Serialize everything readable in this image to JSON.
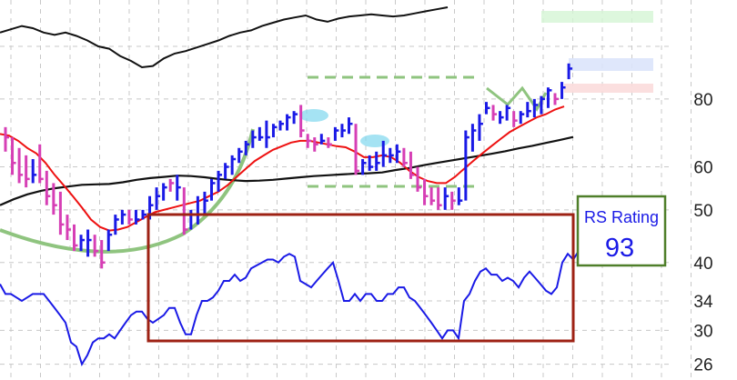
{
  "chart_data": {
    "type": "line",
    "title": "",
    "xlabel": "",
    "ylabel": "",
    "y_scale": "log",
    "ylim": [
      24.5,
      118
    ],
    "y_ticks": [
      80,
      60,
      50,
      40,
      34,
      30,
      26
    ],
    "grid": true,
    "colors": {
      "up_bar": "#1a1ae6",
      "down_bar": "#d63fb5",
      "ma_fast": "#ee1111",
      "ma_slow": "#111111",
      "rs_line_upper": "#111111",
      "rs_line_lower": "#1a1ae6",
      "pattern_marks": "#8fc47f",
      "rs_box": "#9e2214",
      "rating_box": "#4f7f2a",
      "rating_text": "#1a1ae6"
    },
    "series": [
      {
        "kind": "ohlc",
        "values": [
          {
            "h": 71,
            "l": 64,
            "c": 68,
            "up": false
          },
          {
            "h": 68,
            "l": 58,
            "c": 61,
            "up": false
          },
          {
            "h": 65,
            "l": 56,
            "c": 58,
            "up": false
          },
          {
            "h": 63,
            "l": 55,
            "c": 57,
            "up": false
          },
          {
            "h": 62,
            "l": 56,
            "c": 58,
            "up": true
          },
          {
            "h": 66,
            "l": 56,
            "c": 57,
            "up": false
          },
          {
            "h": 59,
            "l": 51,
            "c": 53,
            "up": false
          },
          {
            "h": 56,
            "l": 49,
            "c": 51,
            "up": false
          },
          {
            "h": 54,
            "l": 45,
            "c": 47,
            "up": false
          },
          {
            "h": 49,
            "l": 44,
            "c": 46,
            "up": false
          },
          {
            "h": 47,
            "l": 42,
            "c": 43,
            "up": false
          },
          {
            "h": 45,
            "l": 42,
            "c": 44,
            "up": true
          },
          {
            "h": 46,
            "l": 41,
            "c": 44,
            "up": true
          },
          {
            "h": 45,
            "l": 41,
            "c": 42,
            "up": false
          },
          {
            "h": 44,
            "l": 39,
            "c": 40,
            "up": false
          },
          {
            "h": 46,
            "l": 42,
            "c": 45,
            "up": true
          },
          {
            "h": 49,
            "l": 45,
            "c": 48,
            "up": true
          },
          {
            "h": 50,
            "l": 47,
            "c": 49,
            "up": true
          },
          {
            "h": 50,
            "l": 47,
            "c": 48,
            "up": false
          },
          {
            "h": 50,
            "l": 47,
            "c": 48,
            "up": true
          },
          {
            "h": 50,
            "l": 48,
            "c": 49,
            "up": true
          },
          {
            "h": 53,
            "l": 48,
            "c": 51,
            "up": true
          },
          {
            "h": 55,
            "l": 50,
            "c": 53,
            "up": true
          },
          {
            "h": 56,
            "l": 52,
            "c": 55,
            "up": true
          },
          {
            "h": 57,
            "l": 54,
            "c": 56,
            "up": false
          },
          {
            "h": 58,
            "l": 52,
            "c": 55,
            "up": true
          },
          {
            "h": 55,
            "l": 45,
            "c": 46,
            "up": false
          },
          {
            "h": 50,
            "l": 46,
            "c": 49,
            "up": true
          },
          {
            "h": 53,
            "l": 47,
            "c": 49,
            "up": true
          },
          {
            "h": 54,
            "l": 49,
            "c": 52,
            "up": true
          },
          {
            "h": 57,
            "l": 52,
            "c": 56,
            "up": true
          },
          {
            "h": 59,
            "l": 54,
            "c": 58,
            "up": true
          },
          {
            "h": 61,
            "l": 57,
            "c": 60,
            "up": true
          },
          {
            "h": 63,
            "l": 58,
            "c": 62,
            "up": true
          },
          {
            "h": 65,
            "l": 61,
            "c": 64,
            "up": true
          },
          {
            "h": 67,
            "l": 63,
            "c": 66,
            "up": true
          },
          {
            "h": 70,
            "l": 65,
            "c": 68,
            "up": true
          },
          {
            "h": 71,
            "l": 67,
            "c": 68,
            "up": true
          },
          {
            "h": 73,
            "l": 65,
            "c": 68,
            "up": true
          },
          {
            "h": 72,
            "l": 68,
            "c": 71,
            "up": true
          },
          {
            "h": 73,
            "l": 70,
            "c": 72,
            "up": true
          },
          {
            "h": 75,
            "l": 70,
            "c": 74,
            "up": true
          },
          {
            "h": 76,
            "l": 72,
            "c": 75,
            "up": true
          },
          {
            "h": 78,
            "l": 68,
            "c": 70,
            "up": false
          },
          {
            "h": 69,
            "l": 65,
            "c": 67,
            "up": false
          },
          {
            "h": 68,
            "l": 64,
            "c": 66,
            "up": false
          },
          {
            "h": 69,
            "l": 66,
            "c": 67,
            "up": true
          },
          {
            "h": 68,
            "l": 65,
            "c": 66,
            "up": false
          },
          {
            "h": 71,
            "l": 67,
            "c": 70,
            "up": true
          },
          {
            "h": 72,
            "l": 68,
            "c": 70,
            "up": true
          },
          {
            "h": 74,
            "l": 69,
            "c": 72,
            "up": true
          },
          {
            "h": 72,
            "l": 58,
            "c": 59,
            "up": false
          },
          {
            "h": 62,
            "l": 58,
            "c": 61,
            "up": true
          },
          {
            "h": 63,
            "l": 59,
            "c": 60,
            "up": true
          },
          {
            "h": 64,
            "l": 59,
            "c": 61,
            "up": true
          },
          {
            "h": 67,
            "l": 60,
            "c": 63,
            "up": true
          },
          {
            "h": 65,
            "l": 61,
            "c": 63,
            "up": true
          },
          {
            "h": 66,
            "l": 61,
            "c": 64,
            "up": true
          },
          {
            "h": 65,
            "l": 60,
            "c": 61,
            "up": false
          },
          {
            "h": 64,
            "l": 57,
            "c": 58,
            "up": false
          },
          {
            "h": 60,
            "l": 54,
            "c": 55,
            "up": false
          },
          {
            "h": 57,
            "l": 51,
            "c": 53,
            "up": false
          },
          {
            "h": 55,
            "l": 51,
            "c": 52,
            "up": false
          },
          {
            "h": 55,
            "l": 50,
            "c": 51,
            "up": false
          },
          {
            "h": 55,
            "l": 50,
            "c": 53,
            "up": true
          },
          {
            "h": 54,
            "l": 50,
            "c": 52,
            "up": false
          },
          {
            "h": 55,
            "l": 51,
            "c": 52,
            "up": true
          },
          {
            "h": 70,
            "l": 52,
            "c": 68,
            "up": true
          },
          {
            "h": 72,
            "l": 64,
            "c": 70,
            "up": true
          },
          {
            "h": 75,
            "l": 67,
            "c": 72,
            "up": true
          },
          {
            "h": 79,
            "l": 75,
            "c": 77,
            "up": true
          },
          {
            "h": 78,
            "l": 73,
            "c": 75,
            "up": false
          },
          {
            "h": 76,
            "l": 72,
            "c": 74,
            "up": true
          },
          {
            "h": 78,
            "l": 73,
            "c": 77,
            "up": true
          },
          {
            "h": 76,
            "l": 71,
            "c": 73,
            "up": false
          },
          {
            "h": 76,
            "l": 72,
            "c": 75,
            "up": true
          },
          {
            "h": 79,
            "l": 74,
            "c": 76,
            "up": true
          },
          {
            "h": 80,
            "l": 74,
            "c": 78,
            "up": true
          },
          {
            "h": 81,
            "l": 75,
            "c": 80,
            "up": true
          },
          {
            "h": 84,
            "l": 77,
            "c": 83,
            "up": true
          },
          {
            "h": 82,
            "l": 78,
            "c": 80,
            "up": false
          },
          {
            "h": 86,
            "l": 80,
            "c": 84,
            "up": true
          },
          {
            "h": 93,
            "l": 87,
            "c": 91,
            "up": true
          }
        ]
      },
      {
        "kind": "moving_average_fast",
        "values": [
          69,
          68.5,
          67,
          65,
          63.5,
          61,
          58,
          55.5,
          53,
          50.5,
          48,
          46.5,
          45.8,
          46,
          46.5,
          47.5,
          48.5,
          49.5,
          50,
          50.5,
          51,
          51.5,
          52,
          53,
          54,
          55.5,
          57.5,
          59.5,
          61.5,
          63,
          64.5,
          65.5,
          66.5,
          67,
          67,
          66.5,
          66,
          65.5,
          65.2,
          64,
          62.5,
          62.5,
          63,
          62.5,
          61,
          59,
          57.5,
          56.5,
          56,
          56,
          57.5,
          59.5,
          61.5,
          63.5,
          65.5,
          67.5,
          69.5,
          71,
          72.5,
          74,
          75,
          76.5,
          77.5
        ]
      },
      {
        "kind": "moving_average_slow",
        "values": [
          51,
          52.3,
          53.4,
          54.2,
          54.8,
          55.2,
          55.6,
          55.7,
          55.8,
          56.2,
          56.8,
          57.2,
          57.5,
          57.8,
          57.7,
          57.4,
          57,
          56.7,
          56.5,
          56.6,
          56.8,
          57.1,
          57.4,
          57.7,
          57.9,
          58.1,
          58.3,
          58.4,
          58.6,
          59.2,
          59.7,
          60.4,
          61,
          61.6,
          62.2,
          62.8,
          63.4,
          64.1,
          64.9,
          65.6,
          66.4,
          67.2,
          68.1
        ]
      },
      {
        "kind": "rs_line",
        "values": [
          36.5,
          35,
          35,
          34.5,
          34,
          34.5,
          35,
          35,
          35,
          34,
          33,
          32,
          31,
          28.5,
          28,
          26,
          27,
          28.5,
          29,
          29,
          29.5,
          29,
          30,
          31,
          32,
          32.5,
          32.5,
          31.5,
          31,
          31.5,
          32,
          33,
          33,
          31,
          29.5,
          29.5,
          32,
          34,
          34,
          34.5,
          35.5,
          37,
          37,
          38,
          37,
          37.5,
          39,
          39.5,
          40,
          40.5,
          40.5,
          40,
          41,
          41.5,
          41,
          37,
          36.5,
          36,
          37,
          38,
          39,
          40,
          37,
          34,
          34,
          35,
          34,
          35,
          35,
          34,
          34,
          35,
          35,
          36,
          36,
          34.5,
          34,
          33,
          32,
          31,
          30,
          29,
          30,
          30,
          29,
          34,
          35,
          37,
          38.5,
          39,
          38,
          38,
          37,
          37.5,
          37,
          36,
          37.5,
          38.5,
          37.5,
          36.5,
          35.5,
          35,
          36,
          40,
          41.5,
          40.5,
          42,
          44
        ]
      }
    ],
    "overlay_line_values": [
      106,
      107.5,
      109,
      108,
      106,
      105,
      106,
      104.5,
      102.5,
      100,
      99,
      96,
      94,
      91.5,
      92,
      95,
      97,
      98,
      99.5,
      101,
      102.5,
      104.5,
      106,
      107,
      109,
      110.5,
      112,
      113,
      114,
      112,
      111,
      112.5,
      113.5,
      114,
      114.5,
      114,
      113.5,
      114,
      115,
      116,
      117,
      118
    ],
    "bases": {
      "left_cup_curve": true,
      "flat_base_box": {
        "top": 77.5,
        "bottom": 49.5
      }
    },
    "rs_rating": {
      "label": "RS Rating",
      "value": "93"
    }
  }
}
